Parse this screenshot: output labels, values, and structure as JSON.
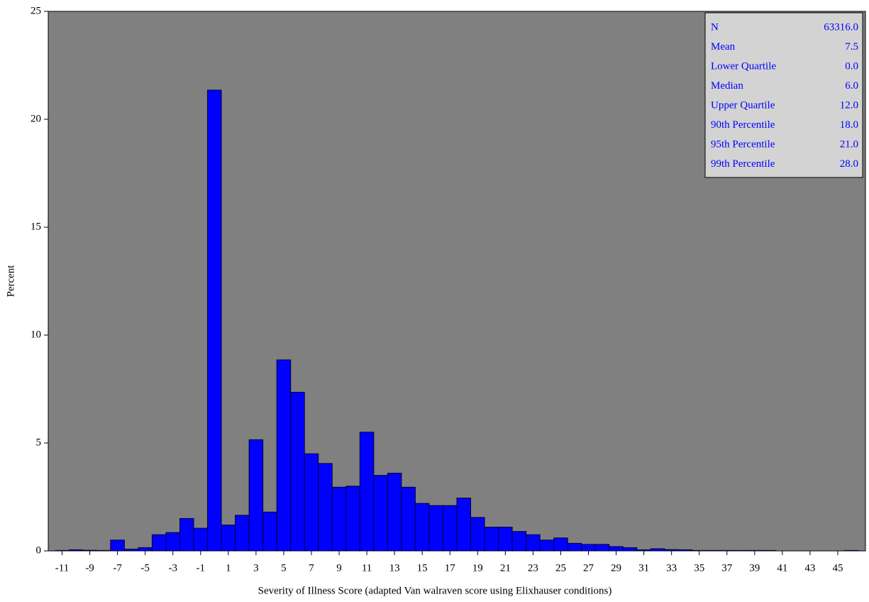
{
  "chart_data": {
    "type": "histogram",
    "xlabel": "Severity of Illness Score (adapted Van walraven score using Elixhauser conditions)",
    "ylabel": "Percent",
    "bins": [
      -11.5,
      -10.5,
      -9.5,
      -8.5,
      -7.5,
      -6.5,
      -5.5,
      -4.5,
      -3.5,
      -2.5,
      -1.5,
      -0.5,
      0.5,
      1.5,
      2.5,
      3.5,
      4.5,
      5.5,
      6.5,
      7.5,
      8.5,
      9.5,
      10.5,
      11.5,
      12.5,
      13.5,
      14.5,
      15.5,
      16.5,
      17.5,
      18.5,
      19.5,
      20.5,
      21.5,
      22.5,
      23.5,
      24.5,
      25.5,
      26.5,
      27.5,
      28.5,
      29.5,
      30.5,
      31.5,
      32.5,
      33.5,
      34.5,
      35.5,
      36.5,
      37.5,
      38.5,
      39.5,
      40.5,
      41.5,
      42.5,
      43.5,
      44.5,
      45.5,
      46.5
    ],
    "values": [
      0.02,
      0.05,
      0.03,
      0.02,
      0.5,
      0.08,
      0.15,
      0.75,
      0.85,
      1.5,
      1.05,
      21.35,
      1.2,
      1.65,
      5.15,
      1.8,
      8.85,
      7.35,
      4.5,
      4.05,
      2.95,
      3.0,
      5.5,
      3.5,
      3.6,
      2.95,
      2.2,
      2.1,
      2.1,
      2.45,
      1.55,
      1.1,
      1.1,
      0.9,
      0.75,
      0.5,
      0.6,
      0.35,
      0.3,
      0.3,
      0.2,
      0.15,
      0.05,
      0.1,
      0.06,
      0.05,
      0.02,
      0.02,
      0.02,
      0.02,
      0.02,
      0.02,
      0,
      0,
      0,
      0,
      0,
      0.02
    ],
    "color": "#0000ff",
    "background": "#808080",
    "xlim": [
      -12,
      47
    ],
    "xticks": [
      -11,
      -9,
      -7,
      -5,
      -3,
      -1,
      1,
      3,
      5,
      7,
      9,
      11,
      13,
      15,
      17,
      19,
      21,
      23,
      25,
      27,
      29,
      31,
      33,
      35,
      37,
      39,
      41,
      43,
      45
    ],
    "ylim": [
      0,
      25
    ],
    "yticks": [
      0,
      5,
      10,
      15,
      20,
      25
    ],
    "stats": [
      [
        "N",
        "63316.0"
      ],
      [
        "Mean",
        "7.5"
      ],
      [
        "Lower Quartile",
        "0.0"
      ],
      [
        "Median",
        "6.0"
      ],
      [
        "Upper Quartile",
        "12.0"
      ],
      [
        "90th Percentile",
        "18.0"
      ],
      [
        "95th Percentile",
        "21.0"
      ],
      [
        "99th Percentile",
        "28.0"
      ]
    ]
  }
}
